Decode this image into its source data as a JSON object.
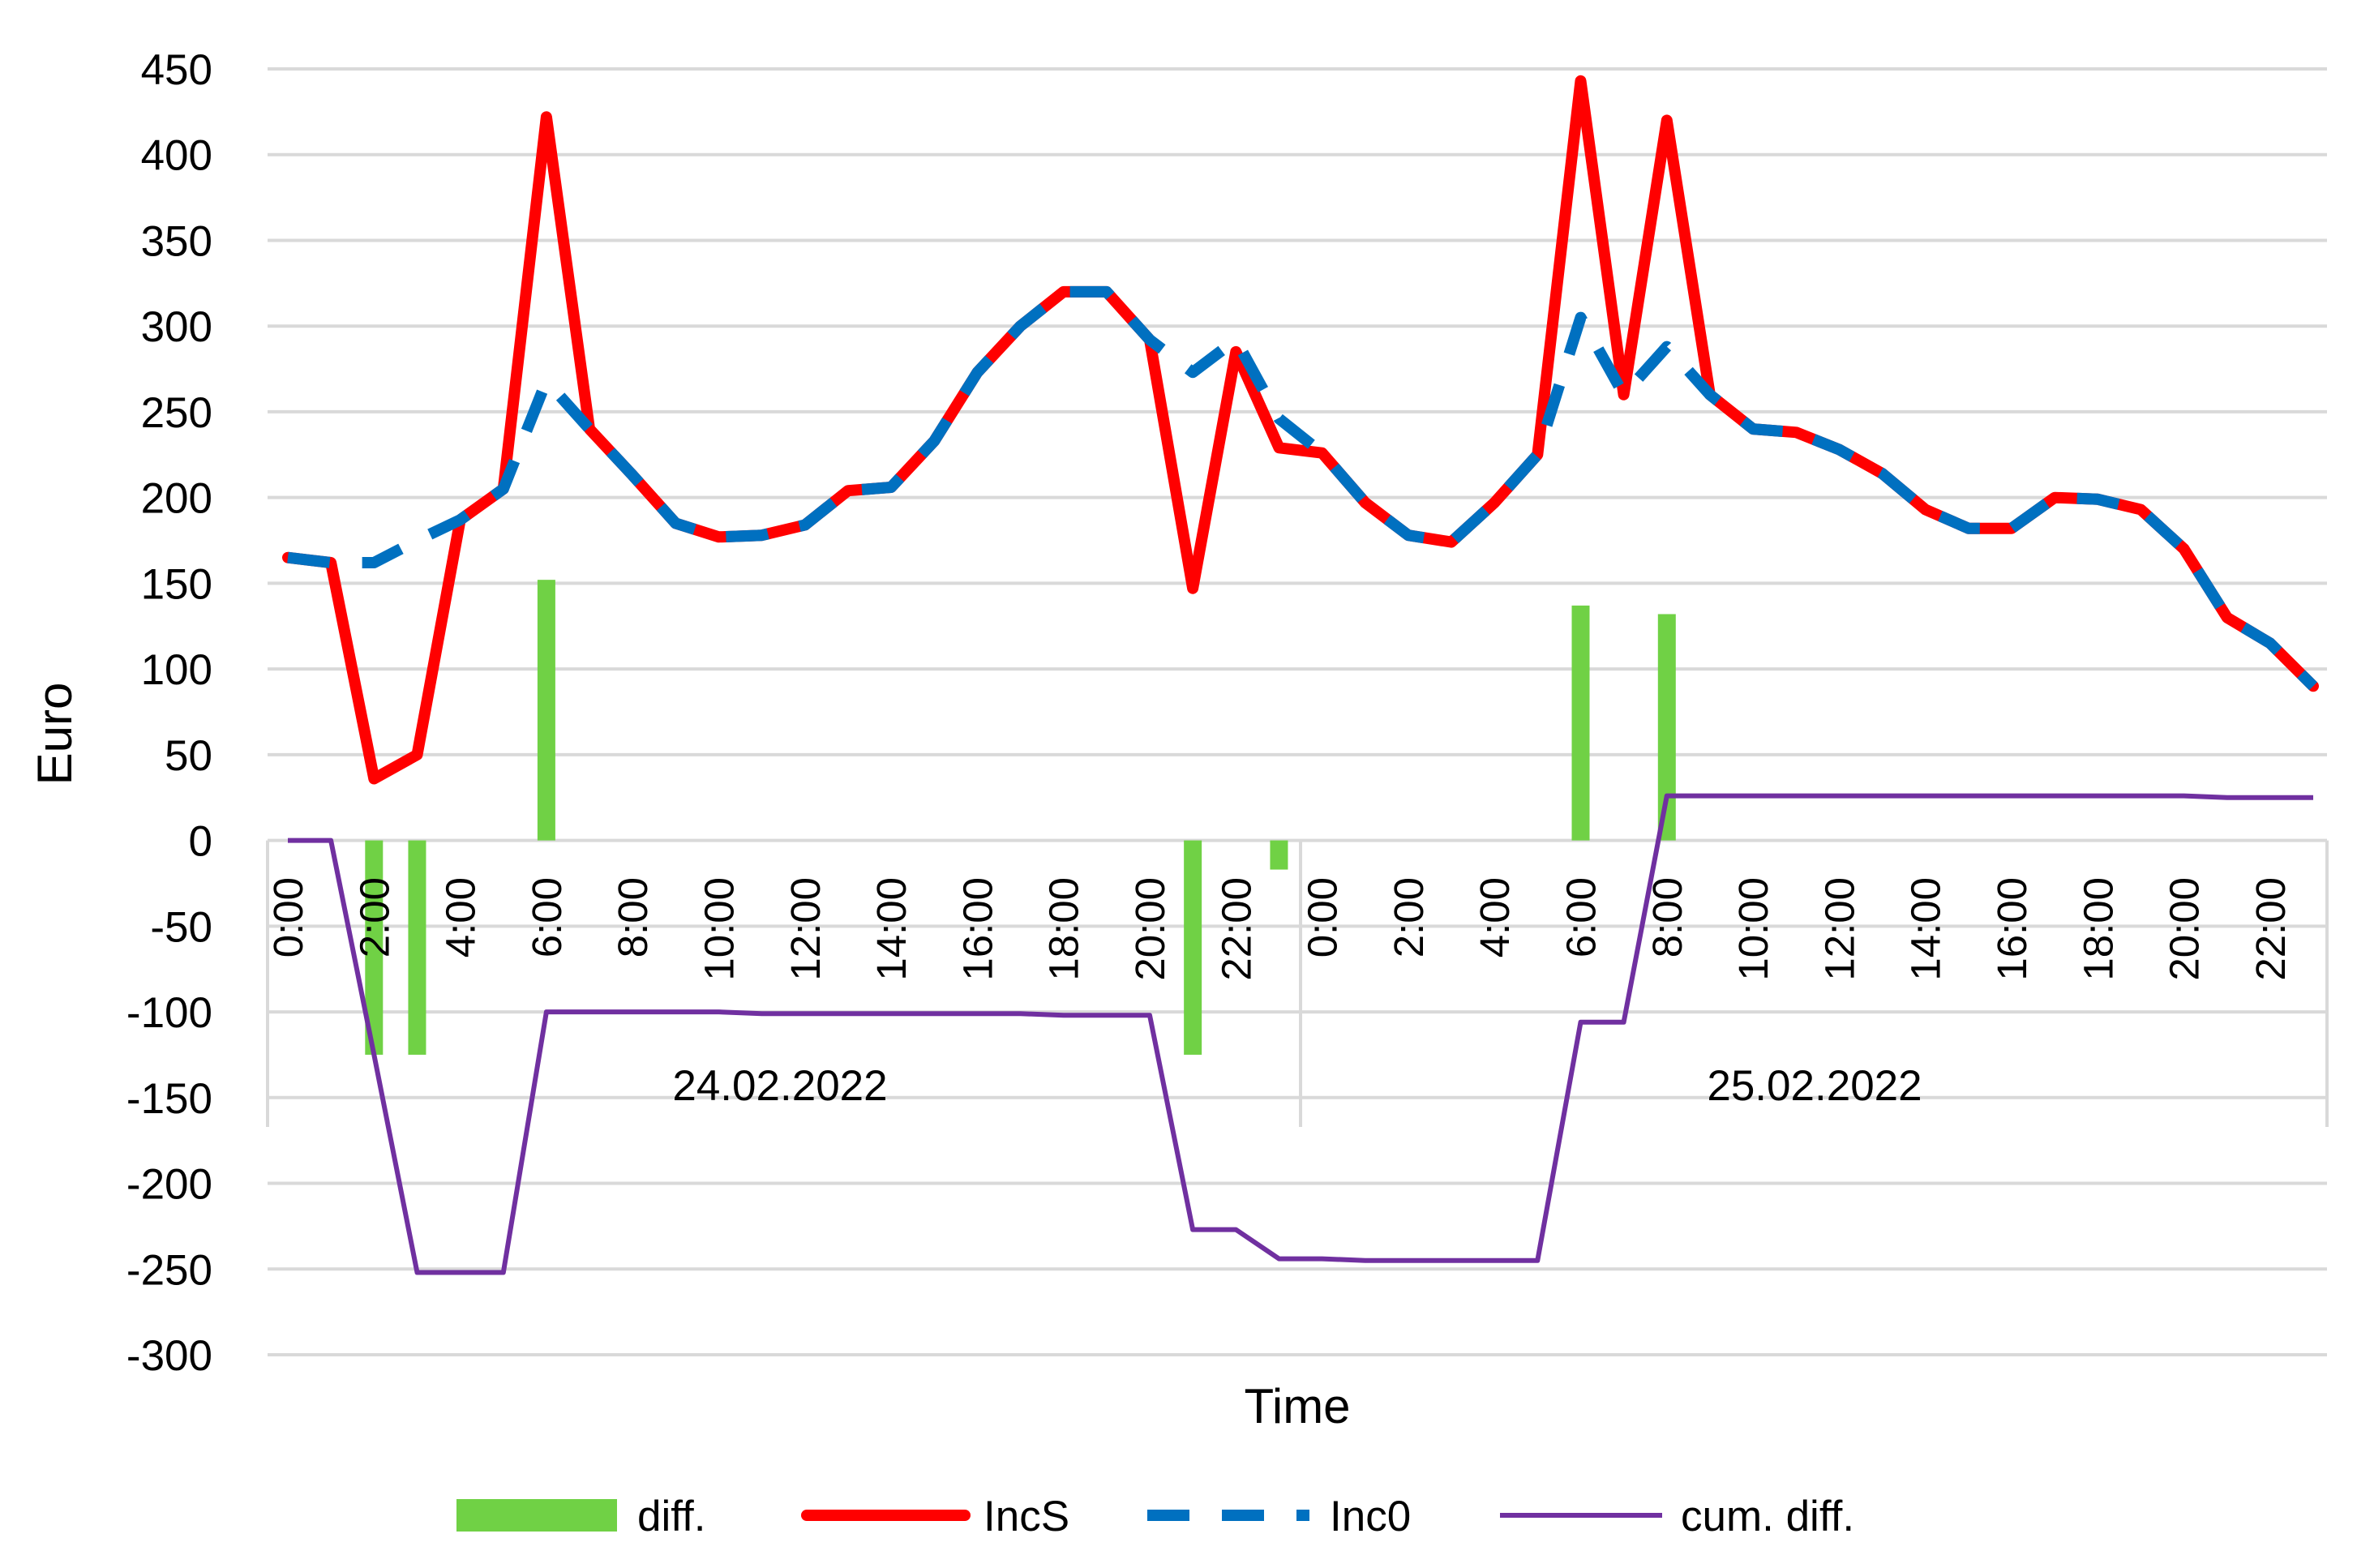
{
  "chart_data": {
    "type": "bar+line",
    "title": "",
    "xlabel": "Time",
    "ylabel": "Euro",
    "ylim": [
      -300,
      450
    ],
    "y_ticks": [
      450,
      400,
      350,
      300,
      250,
      200,
      150,
      100,
      50,
      0,
      -50,
      -100,
      -150,
      -200,
      -250,
      -300
    ],
    "grid": true,
    "legend_position": "bottom",
    "x_hours": [
      0,
      1,
      2,
      3,
      4,
      5,
      6,
      7,
      8,
      9,
      10,
      11,
      12,
      13,
      14,
      15,
      16,
      17,
      18,
      19,
      20,
      21,
      22,
      23,
      24,
      25,
      26,
      27,
      28,
      29,
      30,
      31,
      32,
      33,
      34,
      35,
      36,
      37,
      38,
      39,
      40,
      41,
      42,
      43,
      44,
      45,
      46,
      47
    ],
    "x_tick_labels": [
      "0:00",
      "2:00",
      "4:00",
      "6:00",
      "8:00",
      "10:00",
      "12:00",
      "14:00",
      "16:00",
      "18:00",
      "20:00",
      "22:00",
      "0:00",
      "2:00",
      "4:00",
      "6:00",
      "8:00",
      "10:00",
      "12:00",
      "14:00",
      "16:00",
      "18:00",
      "20:00",
      "22:00"
    ],
    "date_labels": [
      "24.02.2022",
      "25.02.2022"
    ],
    "series": [
      {
        "name": "diff.",
        "kind": "bar",
        "color": "#70d145",
        "values": [
          0,
          0,
          -125,
          -125,
          0,
          0,
          152,
          0,
          0,
          0,
          0,
          0,
          0,
          0,
          0,
          0,
          0,
          0,
          0,
          0,
          0,
          -125,
          0,
          -17,
          0,
          0,
          0,
          0,
          0,
          0,
          137,
          0,
          132,
          0,
          0,
          0,
          0,
          0,
          0,
          0,
          0,
          0,
          0,
          0,
          0,
          0,
          0,
          0
        ]
      },
      {
        "name": "IncS",
        "kind": "line",
        "color": "#ff0000",
        "values": [
          165,
          162,
          36,
          50,
          187,
          205,
          422,
          240,
          213,
          185,
          177,
          178,
          184,
          204,
          206,
          233,
          273,
          300,
          320,
          320,
          292,
          147,
          285,
          229,
          226,
          197,
          178,
          174,
          197,
          225,
          443,
          260,
          420,
          260,
          240,
          238,
          228,
          214,
          193,
          182,
          182,
          200,
          199,
          193,
          170,
          130,
          115,
          90
        ]
      },
      {
        "name": "Inc0",
        "kind": "dashed-line",
        "color": "#0070c0",
        "values": [
          165,
          162,
          162,
          175,
          187,
          205,
          268,
          240,
          213,
          185,
          177,
          178,
          184,
          204,
          206,
          233,
          273,
          300,
          320,
          320,
          292,
          273,
          292,
          246,
          226,
          197,
          178,
          174,
          197,
          225,
          305,
          260,
          288,
          260,
          240,
          238,
          228,
          214,
          193,
          182,
          182,
          200,
          199,
          193,
          170,
          130,
          115,
          90
        ]
      },
      {
        "name": "cum. diff.",
        "kind": "line",
        "color": "#7030a0",
        "values": [
          0,
          0,
          -125,
          -252,
          -252,
          -252,
          -100,
          -100,
          -100,
          -100,
          -100,
          -101,
          -101,
          -101,
          -101,
          -101,
          -101,
          -101,
          -102,
          -102,
          -102,
          -227,
          -227,
          -244,
          -244,
          -245,
          -245,
          -245,
          -245,
          -245,
          -106,
          -106,
          26,
          26,
          26,
          26,
          26,
          26,
          26,
          26,
          26,
          26,
          26,
          26,
          26,
          25,
          25,
          25
        ]
      }
    ]
  }
}
